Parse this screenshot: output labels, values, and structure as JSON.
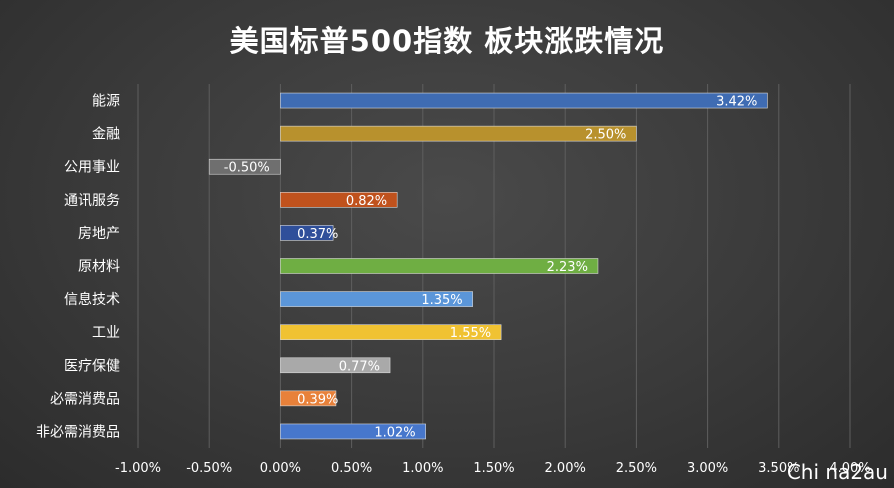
{
  "chart_data": {
    "type": "bar",
    "orientation": "horizontal",
    "title": "美国标普500指数 板块涨跌情况",
    "categories": [
      "能源",
      "金融",
      "公用事业",
      "通讯服务",
      "房地产",
      "原材料",
      "信息技术",
      "工业",
      "医疗保健",
      "必需消费品",
      "非必需消费品"
    ],
    "values": [
      3.42,
      2.5,
      -0.5,
      0.82,
      0.37,
      2.23,
      1.35,
      1.55,
      0.77,
      0.39,
      1.02
    ],
    "data_labels": [
      "3.42%",
      "2.50%",
      "-0.50%",
      "0.82%",
      "0.37%",
      "2.23%",
      "1.35%",
      "1.55%",
      "0.77%",
      "0.39%",
      "1.02%"
    ],
    "colors": [
      "#3f6cb3",
      "#b8912d",
      "#6f6f6f",
      "#c0521d",
      "#2f4f9a",
      "#6fae43",
      "#5b96d9",
      "#f0c232",
      "#a9a9a9",
      "#e8813a",
      "#4777cc"
    ],
    "xlim": [
      -1.0,
      4.0
    ],
    "xticks": [
      -1.0,
      -0.5,
      0.0,
      0.5,
      1.0,
      1.5,
      2.0,
      2.5,
      3.0,
      3.5,
      4.0
    ],
    "xtick_labels": [
      "-1.00%",
      "-0.50%",
      "0.00%",
      "0.50%",
      "1.00%",
      "1.50%",
      "2.00%",
      "2.50%",
      "3.00%",
      "3.50%",
      "4.00%"
    ],
    "grid": "vertical",
    "legend": "none"
  },
  "watermark": "Chi na2au"
}
